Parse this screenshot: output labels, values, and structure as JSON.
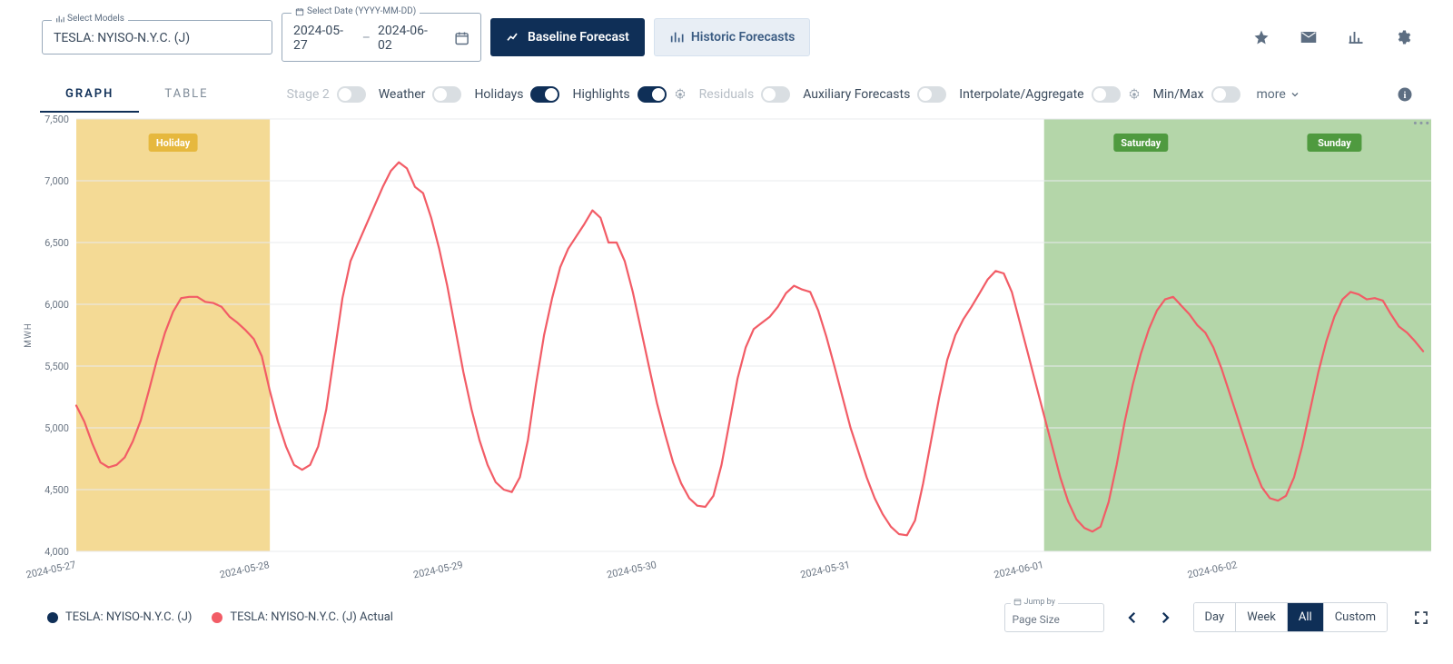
{
  "top": {
    "model_field_label": "Select Models",
    "model_value": "TESLA: NYISO-N.Y.C. (J)",
    "date_field_label": "Select Date (YYYY-MM-DD)",
    "date_start": "2024-05-27",
    "date_end": "2024-06-02",
    "baseline_btn": "Baseline Forecast",
    "historic_btn": "Historic Forecasts"
  },
  "tabs": {
    "graph": "GRAPH",
    "table": "TABLE",
    "active": "graph"
  },
  "toggles": {
    "stage2": {
      "label": "Stage 2",
      "on": false,
      "disabled": true
    },
    "weather": {
      "label": "Weather",
      "on": false
    },
    "holidays": {
      "label": "Holidays",
      "on": true
    },
    "highlights": {
      "label": "Highlights",
      "on": true,
      "gear": true
    },
    "residuals": {
      "label": "Residuals",
      "on": false,
      "disabled": true
    },
    "auxiliary": {
      "label": "Auxiliary Forecasts",
      "on": false
    },
    "interpolate": {
      "label": "Interpolate/Aggregate",
      "on": false,
      "gear": true
    },
    "minmax": {
      "label": "Min/Max",
      "on": false
    },
    "more": "more"
  },
  "legend": {
    "series1": {
      "label": "TESLA: NYISO-N.Y.C. (J)",
      "color": "#0f2f57"
    },
    "series2": {
      "label": "TESLA: NYISO-N.Y.C. (J) Actual",
      "color": "#f25c66"
    }
  },
  "footer": {
    "jump_label": "Jump by",
    "jump_value": "Page Size",
    "ranges": {
      "day": "Day",
      "week": "Week",
      "all": "All",
      "custom": "Custom",
      "active": "all"
    }
  },
  "chart": {
    "type": "line",
    "ylabel": "MWH",
    "ylim": [
      4000,
      7500
    ],
    "ytick_step": 500,
    "yticks": [
      "4,000",
      "4,500",
      "5,000",
      "5,500",
      "6,000",
      "6,500",
      "7,000",
      "7,500"
    ],
    "background": "#ffffff",
    "grid_color": "#e8ebee",
    "line_color": "#f25c66",
    "line_width": 2.2,
    "x_start": "2024-05-27",
    "x_end": "2024-06-03",
    "xticks": [
      "2024-05-27",
      "2024-05-28",
      "2024-05-29",
      "2024-05-30",
      "2024-05-31",
      "2024-06-01",
      "2024-06-02"
    ],
    "bands": [
      {
        "start": 0,
        "end": 1,
        "color": "#f2d383",
        "label": "Holiday",
        "label_bg": "#e6b83e"
      },
      {
        "start": 5,
        "end": 7,
        "color": "#a7cf9a",
        "label": "Saturday",
        "label_bg": "#4f9a3f",
        "label2": "Sunday"
      }
    ],
    "series_actual_hourly": [
      5180,
      5050,
      4870,
      4720,
      4680,
      4700,
      4760,
      4890,
      5060,
      5300,
      5550,
      5770,
      5940,
      6050,
      6060,
      6060,
      6020,
      6010,
      5980,
      5900,
      5850,
      5790,
      5720,
      5580,
      5300,
      5050,
      4850,
      4700,
      4660,
      4700,
      4850,
      5150,
      5600,
      6050,
      6350,
      6500,
      6650,
      6800,
      6950,
      7080,
      7150,
      7100,
      6950,
      6900,
      6700,
      6450,
      6150,
      5800,
      5450,
      5150,
      4900,
      4700,
      4560,
      4500,
      4480,
      4600,
      4900,
      5350,
      5750,
      6050,
      6300,
      6450,
      6550,
      6650,
      6760,
      6700,
      6500,
      6500,
      6350,
      6100,
      5800,
      5500,
      5200,
      4950,
      4720,
      4550,
      4430,
      4370,
      4360,
      4450,
      4700,
      5050,
      5400,
      5650,
      5800,
      5850,
      5900,
      5980,
      6090,
      6150,
      6120,
      6100,
      5950,
      5740,
      5500,
      5250,
      5000,
      4800,
      4600,
      4430,
      4300,
      4200,
      4140,
      4130,
      4250,
      4550,
      4900,
      5250,
      5550,
      5750,
      5880,
      5980,
      6090,
      6200,
      6270,
      6250,
      6100,
      5850,
      5600,
      5350,
      5100,
      4850,
      4600,
      4400,
      4260,
      4190,
      4160,
      4200,
      4400,
      4700,
      5050,
      5350,
      5600,
      5800,
      5950,
      6040,
      6060,
      5990,
      5920,
      5830,
      5770,
      5650,
      5480,
      5280,
      5080,
      4880,
      4680,
      4520,
      4430,
      4410,
      4450,
      4600,
      4850,
      5150,
      5450,
      5700,
      5900,
      6040,
      6100,
      6080,
      6040,
      6050,
      6030,
      5920,
      5820,
      5770,
      5700,
      5620
    ]
  }
}
